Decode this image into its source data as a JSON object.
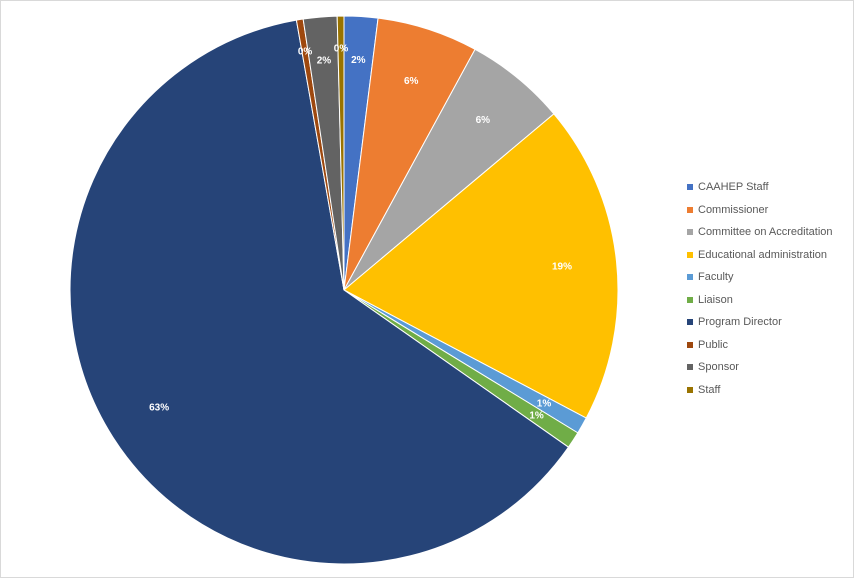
{
  "chart_data": {
    "type": "pie",
    "title": "",
    "legend_position": "right",
    "slices": [
      {
        "name": "CAAHEP Staff",
        "value": 2,
        "label": "2%",
        "color": "#4472C4"
      },
      {
        "name": "Commissioner",
        "value": 6,
        "label": "6%",
        "color": "#ED7D31"
      },
      {
        "name": "Committee on Accreditation",
        "value": 6,
        "label": "6%",
        "color": "#A5A5A5"
      },
      {
        "name": "Educational administration",
        "value": 19,
        "label": "19%",
        "color": "#FFC000"
      },
      {
        "name": "Faculty",
        "value": 1,
        "label": "1%",
        "color": "#5B9BD5"
      },
      {
        "name": "Liaison",
        "value": 1,
        "label": "1%",
        "color": "#70AD47"
      },
      {
        "name": "Program Director",
        "value": 63,
        "label": "63%",
        "color": "#264478"
      },
      {
        "name": "Public",
        "value": 0.4,
        "label": "0%",
        "color": "#9E480E"
      },
      {
        "name": "Sponsor",
        "value": 2,
        "label": "2%",
        "color": "#636363"
      },
      {
        "name": "Staff",
        "value": 0.4,
        "label": "0%",
        "color": "#997300"
      }
    ]
  }
}
